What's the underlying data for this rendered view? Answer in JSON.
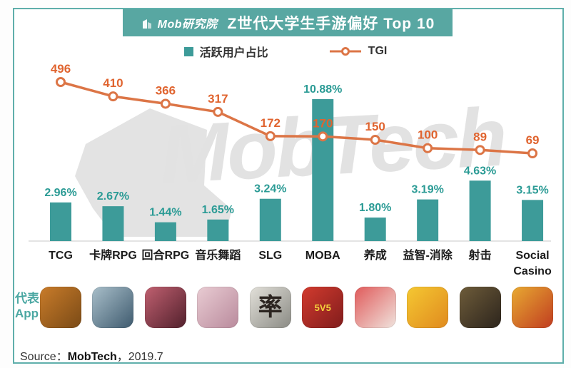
{
  "header": {
    "logo": "Mob研究院",
    "title": "Z世代大学生手游偏好 Top 10"
  },
  "legend": {
    "bar_label": "活跃用户占比",
    "line_label": "TGI"
  },
  "chart_data": {
    "type": "bar",
    "title": "Z世代大学生手游偏好 Top 10",
    "categories": [
      "TCG",
      "卡牌RPG",
      "回合RPG",
      "音乐舞蹈",
      "SLG",
      "MOBA",
      "养成",
      "益智-消除",
      "射击",
      "Social\nCasino"
    ],
    "series": [
      {
        "name": "活跃用户占比",
        "type": "bar",
        "values": [
          2.96,
          2.67,
          1.44,
          1.65,
          3.24,
          10.88,
          1.8,
          3.19,
          4.63,
          3.15
        ],
        "labels": [
          "2.96%",
          "2.67%",
          "1.44%",
          "1.65%",
          "3.24%",
          "10.88%",
          "1.80%",
          "3.19%",
          "4.63%",
          "3.15%"
        ]
      },
      {
        "name": "TGI",
        "type": "line",
        "values": [
          496,
          410,
          366,
          317,
          172,
          170,
          150,
          100,
          89,
          69
        ],
        "labels": [
          "496",
          "410",
          "366",
          "317",
          "172",
          "170",
          "150",
          "100",
          "89",
          "69"
        ]
      }
    ],
    "legend_position": "top",
    "grid": false,
    "xlabel": "",
    "ylabel": ""
  },
  "colors": {
    "teal_bar": "#3d9b99",
    "teal_label": "#2b9b95",
    "banner_teal": "#58a7a2",
    "frame_teal": "#5fafab",
    "orange_line": "#dc7546",
    "orange_label": "#e0642f",
    "axis_line": "#dcdcdc",
    "x_label": "#1b1b1b",
    "watermark_gray": "#e2e2e2"
  },
  "watermark": "MobTech",
  "apps": {
    "label": "代表\nApp",
    "items": [
      {
        "name": "tcg-app-icon",
        "colors": [
          "#c97c2a",
          "#7a4a16"
        ],
        "glyph": "",
        "glyph_color": "#4a90c4",
        "glyph_size": 0
      },
      {
        "name": "card-rpg-app-icon",
        "colors": [
          "#a9bfca",
          "#3e5a6e"
        ],
        "glyph": "",
        "glyph_color": "#ffffff",
        "glyph_size": 0
      },
      {
        "name": "turn-rpg-app-icon",
        "colors": [
          "#c06070",
          "#51202c"
        ],
        "glyph": "",
        "glyph_color": "#ffffff",
        "glyph_size": 0
      },
      {
        "name": "music-dance-app-icon",
        "colors": [
          "#e9ccd3",
          "#b98a9c"
        ],
        "glyph": "",
        "glyph_color": "#ffffff",
        "glyph_size": 0
      },
      {
        "name": "slg-app-icon",
        "colors": [
          "#e3e1da",
          "#8a8a84"
        ],
        "glyph": "率",
        "glyph_color": "#2b2420",
        "glyph_size": 34
      },
      {
        "name": "moba-app-icon",
        "colors": [
          "#d23b2e",
          "#801c1c"
        ],
        "glyph": "5V5",
        "glyph_color": "#f5d23c",
        "glyph_size": 13
      },
      {
        "name": "romance-sim-app-icon",
        "colors": [
          "#e05a5a",
          "#f0e4de"
        ],
        "glyph": "",
        "glyph_color": "#ffffff",
        "glyph_size": 0
      },
      {
        "name": "puzzle-match-app-icon",
        "colors": [
          "#f5c832",
          "#e08a1e"
        ],
        "glyph": "",
        "glyph_color": "#ffffff",
        "glyph_size": 0
      },
      {
        "name": "shooter-app-icon",
        "colors": [
          "#6e5c3a",
          "#2c241c"
        ],
        "glyph": "",
        "glyph_color": "#e8c45a",
        "glyph_size": 0
      },
      {
        "name": "social-casino-app-icon",
        "colors": [
          "#e8aa32",
          "#c03c20"
        ],
        "glyph": "",
        "glyph_color": "#ffffff",
        "glyph_size": 0
      }
    ]
  },
  "source": {
    "prefix": "Source：",
    "name": "MobTech",
    "suffix": "，2019.7"
  }
}
